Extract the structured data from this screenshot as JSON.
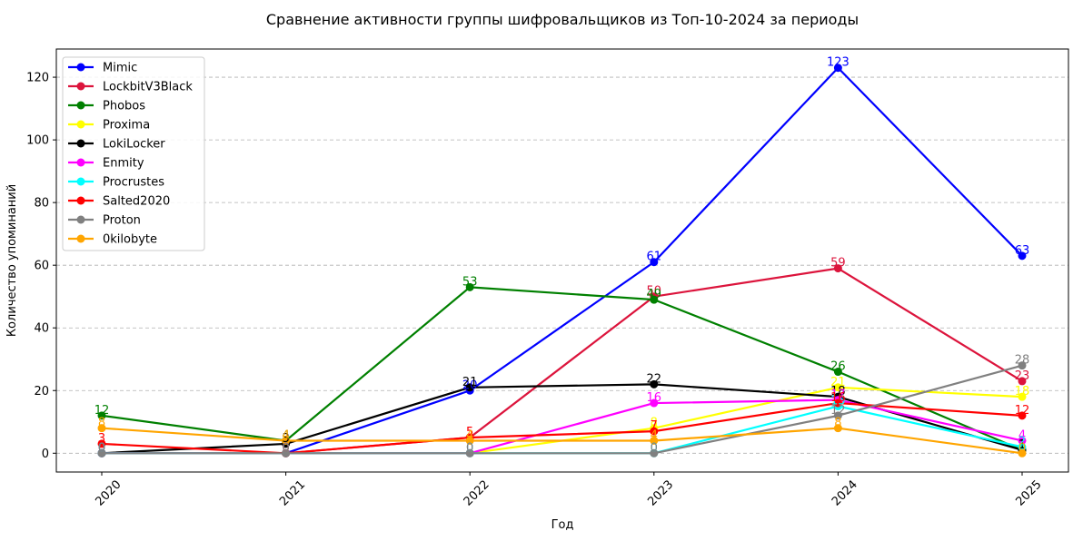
{
  "chart_data": {
    "type": "line",
    "title": "Сравнение активности группы шифровальщиков из Топ-10-2024 за периоды",
    "xlabel": "Год",
    "ylabel": "Количество упоминаний",
    "x": [
      "2020",
      "2021",
      "2022",
      "2023",
      "2024",
      "2025"
    ],
    "ylim": [
      -6,
      129
    ],
    "yticks": [
      0,
      20,
      40,
      60,
      80,
      100,
      120
    ],
    "grid": "horizontal dashed",
    "legend_position": "top-left",
    "series": [
      {
        "name": "Mimic",
        "color": "#0000ff",
        "values": [
          0,
          0,
          20,
          61,
          123,
          63
        ]
      },
      {
        "name": "LockbitV3Black",
        "color": "#dc143c",
        "values": [
          0,
          0,
          5,
          50,
          59,
          23
        ]
      },
      {
        "name": "Phobos",
        "color": "#008000",
        "values": [
          12,
          4,
          53,
          49,
          26,
          1
        ]
      },
      {
        "name": "Proxima",
        "color": "#ffff00",
        "values": [
          0,
          0,
          0,
          8,
          21,
          18
        ]
      },
      {
        "name": "LokiLocker",
        "color": "#000000",
        "values": [
          0,
          3,
          21,
          22,
          18,
          1
        ]
      },
      {
        "name": "Enmity",
        "color": "#ff00ff",
        "values": [
          0,
          0,
          0,
          16,
          17,
          4
        ]
      },
      {
        "name": "Procrustes",
        "color": "#00ffff",
        "values": [
          0,
          0,
          0,
          0,
          15,
          2
        ]
      },
      {
        "name": "Salted2020",
        "color": "#ff0000",
        "values": [
          3,
          0,
          5,
          7,
          16,
          12
        ]
      },
      {
        "name": "Proton",
        "color": "#808080",
        "values": [
          0,
          0,
          0,
          0,
          12,
          28
        ]
      },
      {
        "name": "0kilobyte",
        "color": "#ffa500",
        "values": [
          8,
          4,
          4,
          4,
          8,
          0
        ]
      }
    ]
  }
}
